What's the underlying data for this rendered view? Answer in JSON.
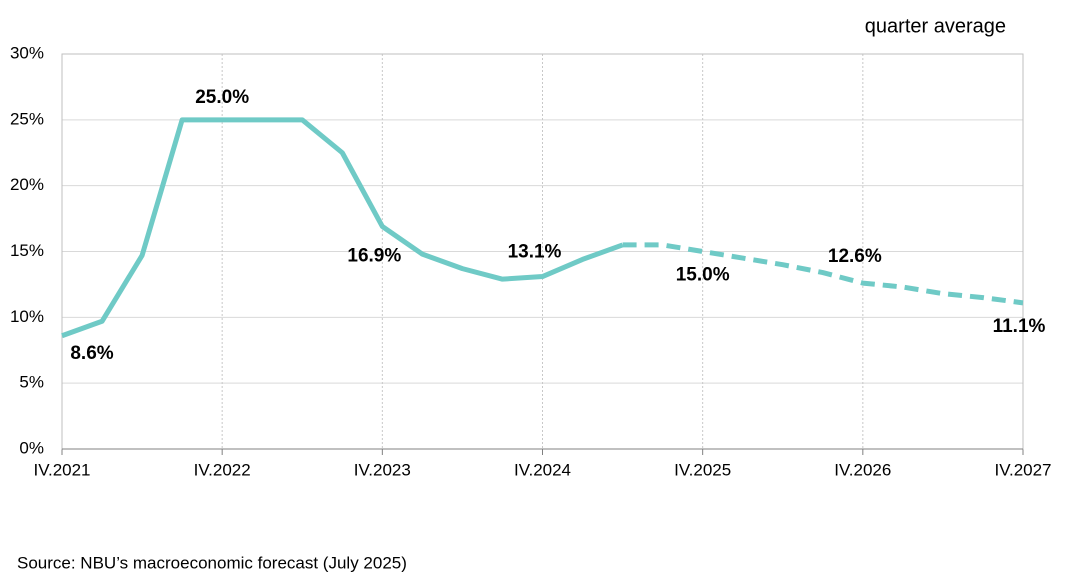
{
  "chart_data": {
    "type": "line",
    "annotation": "quarter average",
    "source": "Source: NBU’s macroeconomic forecast (July 2025)",
    "categories": [
      "IV.2021",
      null,
      null,
      null,
      "IV.2022",
      null,
      null,
      null,
      "IV.2023",
      null,
      null,
      null,
      "IV.2024",
      null,
      null,
      null,
      "IV.2025",
      null,
      null,
      null,
      "IV.2026",
      null,
      null,
      null,
      "IV.2027"
    ],
    "series": [
      {
        "color": "#6fcac6",
        "style": "solid",
        "values": [
          8.6,
          9.7,
          14.7,
          25.0,
          25.0,
          25.0,
          25.0,
          22.5,
          16.9,
          14.8,
          13.7,
          12.9,
          13.1,
          14.4,
          15.5,
          null,
          null,
          null,
          null,
          null,
          null,
          null,
          null,
          null,
          null
        ],
        "value_labels": [
          "8.6%",
          null,
          null,
          null,
          "25.0%",
          null,
          null,
          null,
          "16.9%",
          null,
          null,
          null,
          "13.1%",
          null,
          null,
          null,
          null,
          null,
          null,
          null,
          null,
          null,
          null,
          null,
          null
        ]
      },
      {
        "color": "#6fcac6",
        "style": "dashed",
        "values": [
          null,
          null,
          null,
          null,
          null,
          null,
          null,
          null,
          null,
          null,
          null,
          null,
          null,
          null,
          15.5,
          15.5,
          15.0,
          14.5,
          14.0,
          13.4,
          12.6,
          12.3,
          11.8,
          11.5,
          11.1
        ],
        "value_labels": [
          null,
          null,
          null,
          null,
          null,
          null,
          null,
          null,
          null,
          null,
          null,
          null,
          null,
          null,
          null,
          null,
          "15.0%",
          null,
          null,
          null,
          "12.6%",
          null,
          null,
          null,
          "11.1%"
        ]
      }
    ],
    "ylim": [
      0,
      30
    ],
    "yticks": [
      {
        "value": 0,
        "label": "0%"
      },
      {
        "value": 5,
        "label": "5%"
      },
      {
        "value": 10,
        "label": "10%"
      },
      {
        "value": 15,
        "label": "15%"
      },
      {
        "value": 20,
        "label": "20%"
      },
      {
        "value": 25,
        "label": "25%"
      },
      {
        "value": 30,
        "label": "30%"
      }
    ],
    "grid": true
  }
}
